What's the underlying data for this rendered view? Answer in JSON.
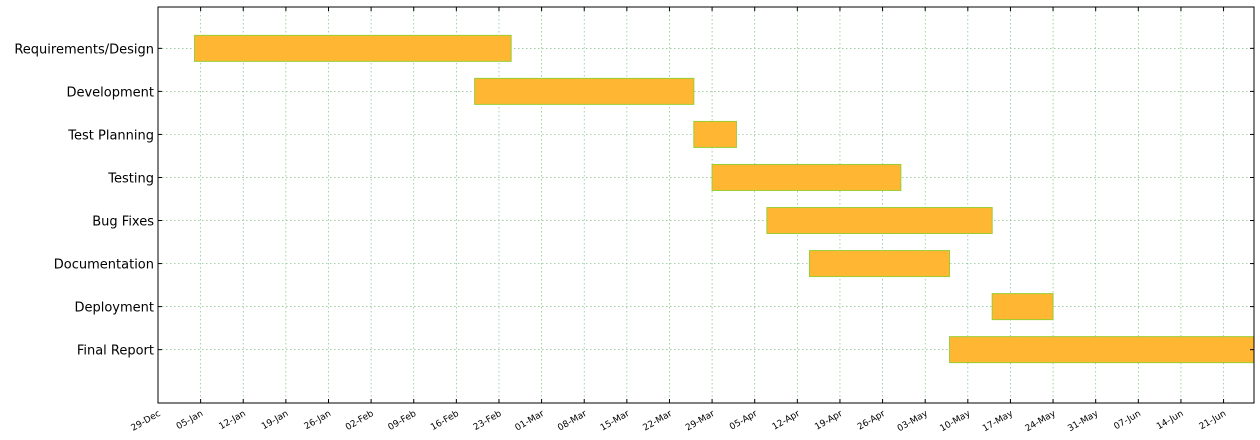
{
  "chart_data": {
    "type": "gantt",
    "title": "",
    "xlabel": "",
    "ylabel": "",
    "year": 2015,
    "xlim": [
      "2014-12-29",
      "2015-06-27"
    ],
    "grid": true,
    "bar_color": "#ffb733",
    "bar_edge_color": "#9acd32",
    "grid_color": "#7fbf7f",
    "x_tick_labels": [
      "29-Dec",
      "05-Jan",
      "12-Jan",
      "19-Jan",
      "26-Jan",
      "02-Feb",
      "09-Feb",
      "16-Feb",
      "23-Feb",
      "01-Mar",
      "08-Mar",
      "15-Mar",
      "22-Mar",
      "29-Mar",
      "05-Apr",
      "12-Apr",
      "19-Apr",
      "26-Apr",
      "03-May",
      "10-May",
      "17-May",
      "24-May",
      "31-May",
      "07-Jun",
      "14-Jun",
      "21-Jun"
    ],
    "tasks": [
      {
        "name": "Requirements/Design",
        "start": "2015-01-04",
        "end": "2015-02-25"
      },
      {
        "name": "Development",
        "start": "2015-02-19",
        "end": "2015-03-27"
      },
      {
        "name": "Test Planning",
        "start": "2015-03-27",
        "end": "2015-04-03"
      },
      {
        "name": "Testing",
        "start": "2015-03-30",
        "end": "2015-04-30"
      },
      {
        "name": "Bug Fixes",
        "start": "2015-04-08",
        "end": "2015-05-15"
      },
      {
        "name": "Documentation",
        "start": "2015-04-15",
        "end": "2015-05-08"
      },
      {
        "name": "Deployment",
        "start": "2015-05-15",
        "end": "2015-05-25"
      },
      {
        "name": "Final Report",
        "start": "2015-05-08",
        "end": "2015-06-27"
      }
    ]
  }
}
